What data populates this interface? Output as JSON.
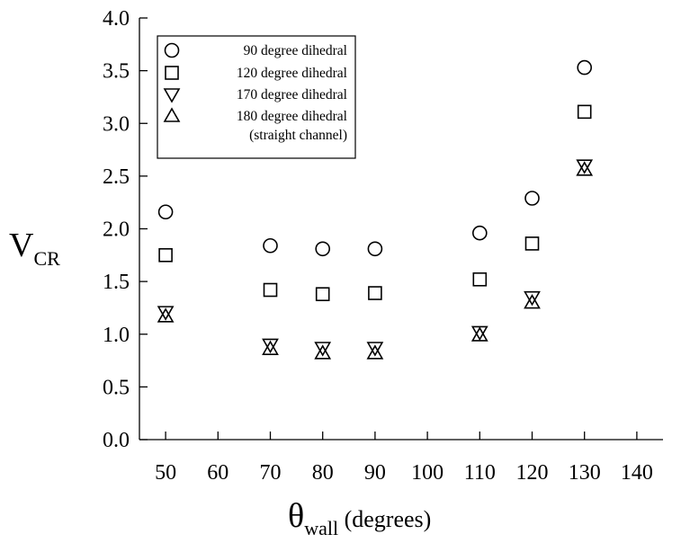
{
  "chart_data": {
    "type": "scatter",
    "xlabel": {
      "main": "θ",
      "sub": "wall",
      "rest": " (degrees)"
    },
    "ylabel": {
      "main": "V",
      "sub": "CR"
    },
    "xlim": [
      45,
      145
    ],
    "ylim": [
      0,
      4
    ],
    "xticks": [
      50,
      60,
      70,
      80,
      90,
      100,
      110,
      120,
      130,
      140
    ],
    "yticks": [
      "0.0",
      "0.5",
      "1.0",
      "1.5",
      "2.0",
      "2.5",
      "3.0",
      "3.5",
      "4.0"
    ],
    "grid": false,
    "legend_position": "top-left",
    "series": [
      {
        "name": "90 degree dihedral",
        "marker": "circle",
        "x": [
          50,
          70,
          80,
          90,
          110,
          120,
          130
        ],
        "y": [
          2.16,
          1.84,
          1.81,
          1.81,
          1.96,
          2.29,
          3.53
        ]
      },
      {
        "name": "120 degree dihedral",
        "marker": "square",
        "x": [
          50,
          70,
          80,
          90,
          110,
          120,
          130
        ],
        "y": [
          1.75,
          1.42,
          1.38,
          1.39,
          1.52,
          1.86,
          3.11
        ]
      },
      {
        "name": "170 degree dihedral",
        "marker": "triangle-down",
        "x": [
          50,
          70,
          80,
          90,
          110,
          120,
          130
        ],
        "y": [
          1.21,
          0.9,
          0.87,
          0.87,
          1.02,
          1.35,
          2.6
        ]
      },
      {
        "name": "180 degree dihedral",
        "name2": "(straight channel)",
        "marker": "triangle-up",
        "x": [
          50,
          70,
          80,
          90,
          110,
          120,
          130
        ],
        "y": [
          1.17,
          0.86,
          0.82,
          0.82,
          0.99,
          1.3,
          2.56
        ]
      }
    ]
  }
}
